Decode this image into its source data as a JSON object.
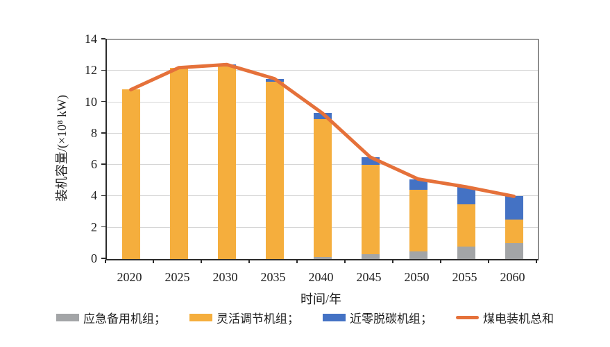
{
  "chart_data": {
    "type": "bar",
    "subtype": "stacked-column-with-line-overlay",
    "title": "",
    "categories": [
      "2020",
      "2025",
      "2030",
      "2035",
      "2040",
      "2045",
      "2050",
      "2055",
      "2060"
    ],
    "series": [
      {
        "name": "应急备用机组",
        "legend_label": "应急备用机组；",
        "color_key": "gray",
        "values": [
          0,
          0,
          0,
          0,
          0.15,
          0.3,
          0.5,
          0.8,
          1.0
        ]
      },
      {
        "name": "灵活调节机组",
        "legend_label": "灵活调节机组；",
        "color_key": "yellow",
        "values": [
          10.8,
          12.2,
          12.3,
          11.3,
          8.75,
          5.7,
          3.9,
          2.7,
          1.5
        ]
      },
      {
        "name": "近零脱碳机组",
        "legend_label": "近零脱碳机组；",
        "color_key": "blue",
        "values": [
          0,
          0,
          0.1,
          0.2,
          0.4,
          0.5,
          0.7,
          1.1,
          1.5
        ]
      }
    ],
    "line_series": {
      "name": "煤电装机总和",
      "legend_label": "煤电装机总和",
      "color_key": "orange",
      "values": [
        10.8,
        12.2,
        12.4,
        11.5,
        9.3,
        6.5,
        5.1,
        4.6,
        4.0
      ]
    },
    "xlabel": "时间/年",
    "ylabel": "装机容量/(×10⁸ kW)",
    "ylim": [
      0,
      14
    ],
    "yticks": [
      0,
      2,
      4,
      6,
      8,
      10,
      12,
      14
    ],
    "grid": "horizontal",
    "legend_position": "bottom",
    "colors": {
      "gray": "#a3a5a7",
      "yellow": "#f5ae3d",
      "blue": "#4472c4",
      "orange": "#e5713a"
    }
  }
}
